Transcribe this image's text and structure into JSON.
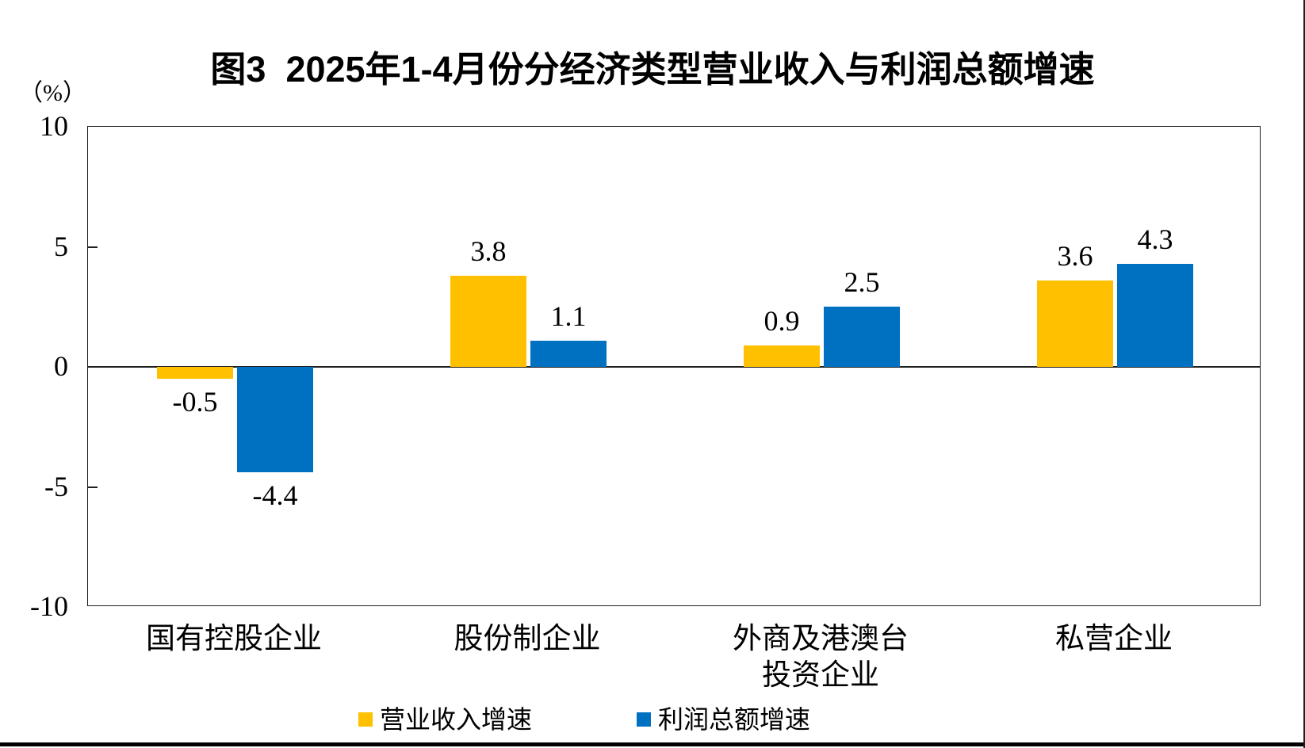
{
  "figure": {
    "title": "图3  2025年1-4月份分经济类型营业收入与利润总额增速",
    "unit_label": "（%）"
  },
  "colors": {
    "revenue_series": "#FFC000",
    "profit_series": "#0070C0",
    "axis_line": "#1f1f1f",
    "bottom_rule": "#000000"
  },
  "chart_data": {
    "type": "bar",
    "title": "图3  2025年1-4月份分经济类型营业收入与利润总额增速",
    "categories": [
      "国有控股企业",
      "股份制企业",
      "外商及港澳台\n投资企业",
      "私营企业"
    ],
    "series": [
      {
        "name": "营业收入增速",
        "color": "#FFC000",
        "values": [
          -0.5,
          3.8,
          0.9,
          3.6
        ]
      },
      {
        "name": "利润总额增速",
        "color": "#0070C0",
        "values": [
          -4.4,
          1.1,
          2.5,
          4.3
        ]
      }
    ],
    "xlabel": "",
    "ylabel": "（%）",
    "yticks": [
      10,
      5,
      0,
      -5,
      -10
    ],
    "ylim": [
      -10,
      10
    ],
    "grid": false,
    "bar_value_labels": true,
    "legend_position": "bottom"
  }
}
